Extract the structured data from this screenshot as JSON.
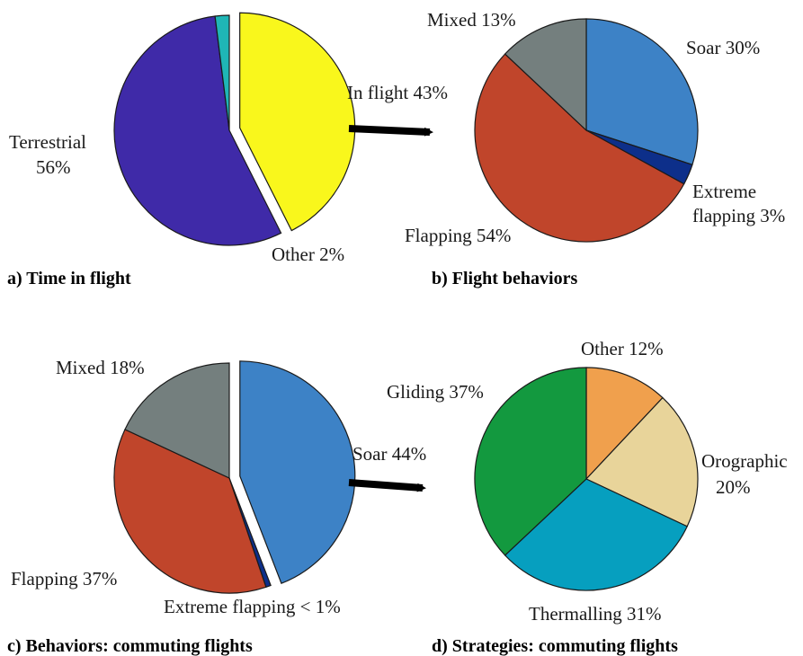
{
  "chart_data": [
    {
      "type": "pie",
      "caption": "a) Time in flight",
      "slices": [
        {
          "label": "Terrestrial",
          "pct_text": "56%",
          "value": 56,
          "color": "#3f2aa8"
        },
        {
          "label": "Other",
          "pct_text": "2%",
          "value": 2,
          "color": "#1fb6b6"
        },
        {
          "label": "In flight",
          "pct_text": "43%",
          "value": 43,
          "color": "#f9f71c",
          "exploded": true
        }
      ]
    },
    {
      "type": "pie",
      "caption": "b) Flight behaviors",
      "slices": [
        {
          "label": "Soar",
          "pct_text": "30%",
          "value": 30,
          "color": "#3d82c6"
        },
        {
          "label": "Extreme flapping",
          "label_line1": "Extreme",
          "label_line2": "flapping 3%",
          "pct_text": "3%",
          "value": 3,
          "color": "#0d2f8a"
        },
        {
          "label": "Flapping",
          "pct_text": "54%",
          "value": 54,
          "color": "#c0452b"
        },
        {
          "label": "Mixed",
          "pct_text": "13%",
          "value": 13,
          "color": "#747f7e"
        }
      ]
    },
    {
      "type": "pie",
      "caption": "c) Behaviors: commuting flights",
      "slices": [
        {
          "label": "Soar",
          "pct_text": "44%",
          "value": 44,
          "color": "#3d82c6",
          "exploded": true
        },
        {
          "label": "Extreme flapping",
          "pct_text": "< 1%",
          "value": 0.7,
          "color": "#0d2f8a"
        },
        {
          "label": "Flapping",
          "pct_text": "37%",
          "value": 37,
          "color": "#c0452b"
        },
        {
          "label": "Mixed",
          "pct_text": "18%",
          "value": 18,
          "color": "#747f7e"
        }
      ]
    },
    {
      "type": "pie",
      "caption": "d) Strategies: commuting flights",
      "slices": [
        {
          "label": "Other",
          "pct_text": "12%",
          "value": 12,
          "color": "#f0a04d"
        },
        {
          "label": "Orographic",
          "pct_text": "20%",
          "value": 20,
          "color": "#e8d49a"
        },
        {
          "label": "Thermalling",
          "pct_text": "31%",
          "value": 31,
          "color": "#069fbf"
        },
        {
          "label": "Gliding",
          "pct_text": "37%",
          "value": 37,
          "color": "#13993f"
        }
      ]
    }
  ],
  "labels": {
    "a_terrestrial_line1": "Terrestrial",
    "a_terrestrial_line2": "56%",
    "a_other": "Other 2%",
    "a_inflight": "In flight 43%",
    "b_mixed": "Mixed 13%",
    "b_soar": "Soar 30%",
    "b_extreme_line1": "Extreme",
    "b_extreme_line2": "flapping 3%",
    "b_flapping": "Flapping 54%",
    "c_mixed": "Mixed 18%",
    "c_soar": "Soar 44%",
    "c_flapping": "Flapping 37%",
    "c_extreme": "Extreme flapping < 1%",
    "d_other": "Other 12%",
    "d_gliding": "Gliding 37%",
    "d_orographic_line1": "Orographic",
    "d_orographic_line2": "20%",
    "d_thermalling": "Thermalling 31%"
  }
}
